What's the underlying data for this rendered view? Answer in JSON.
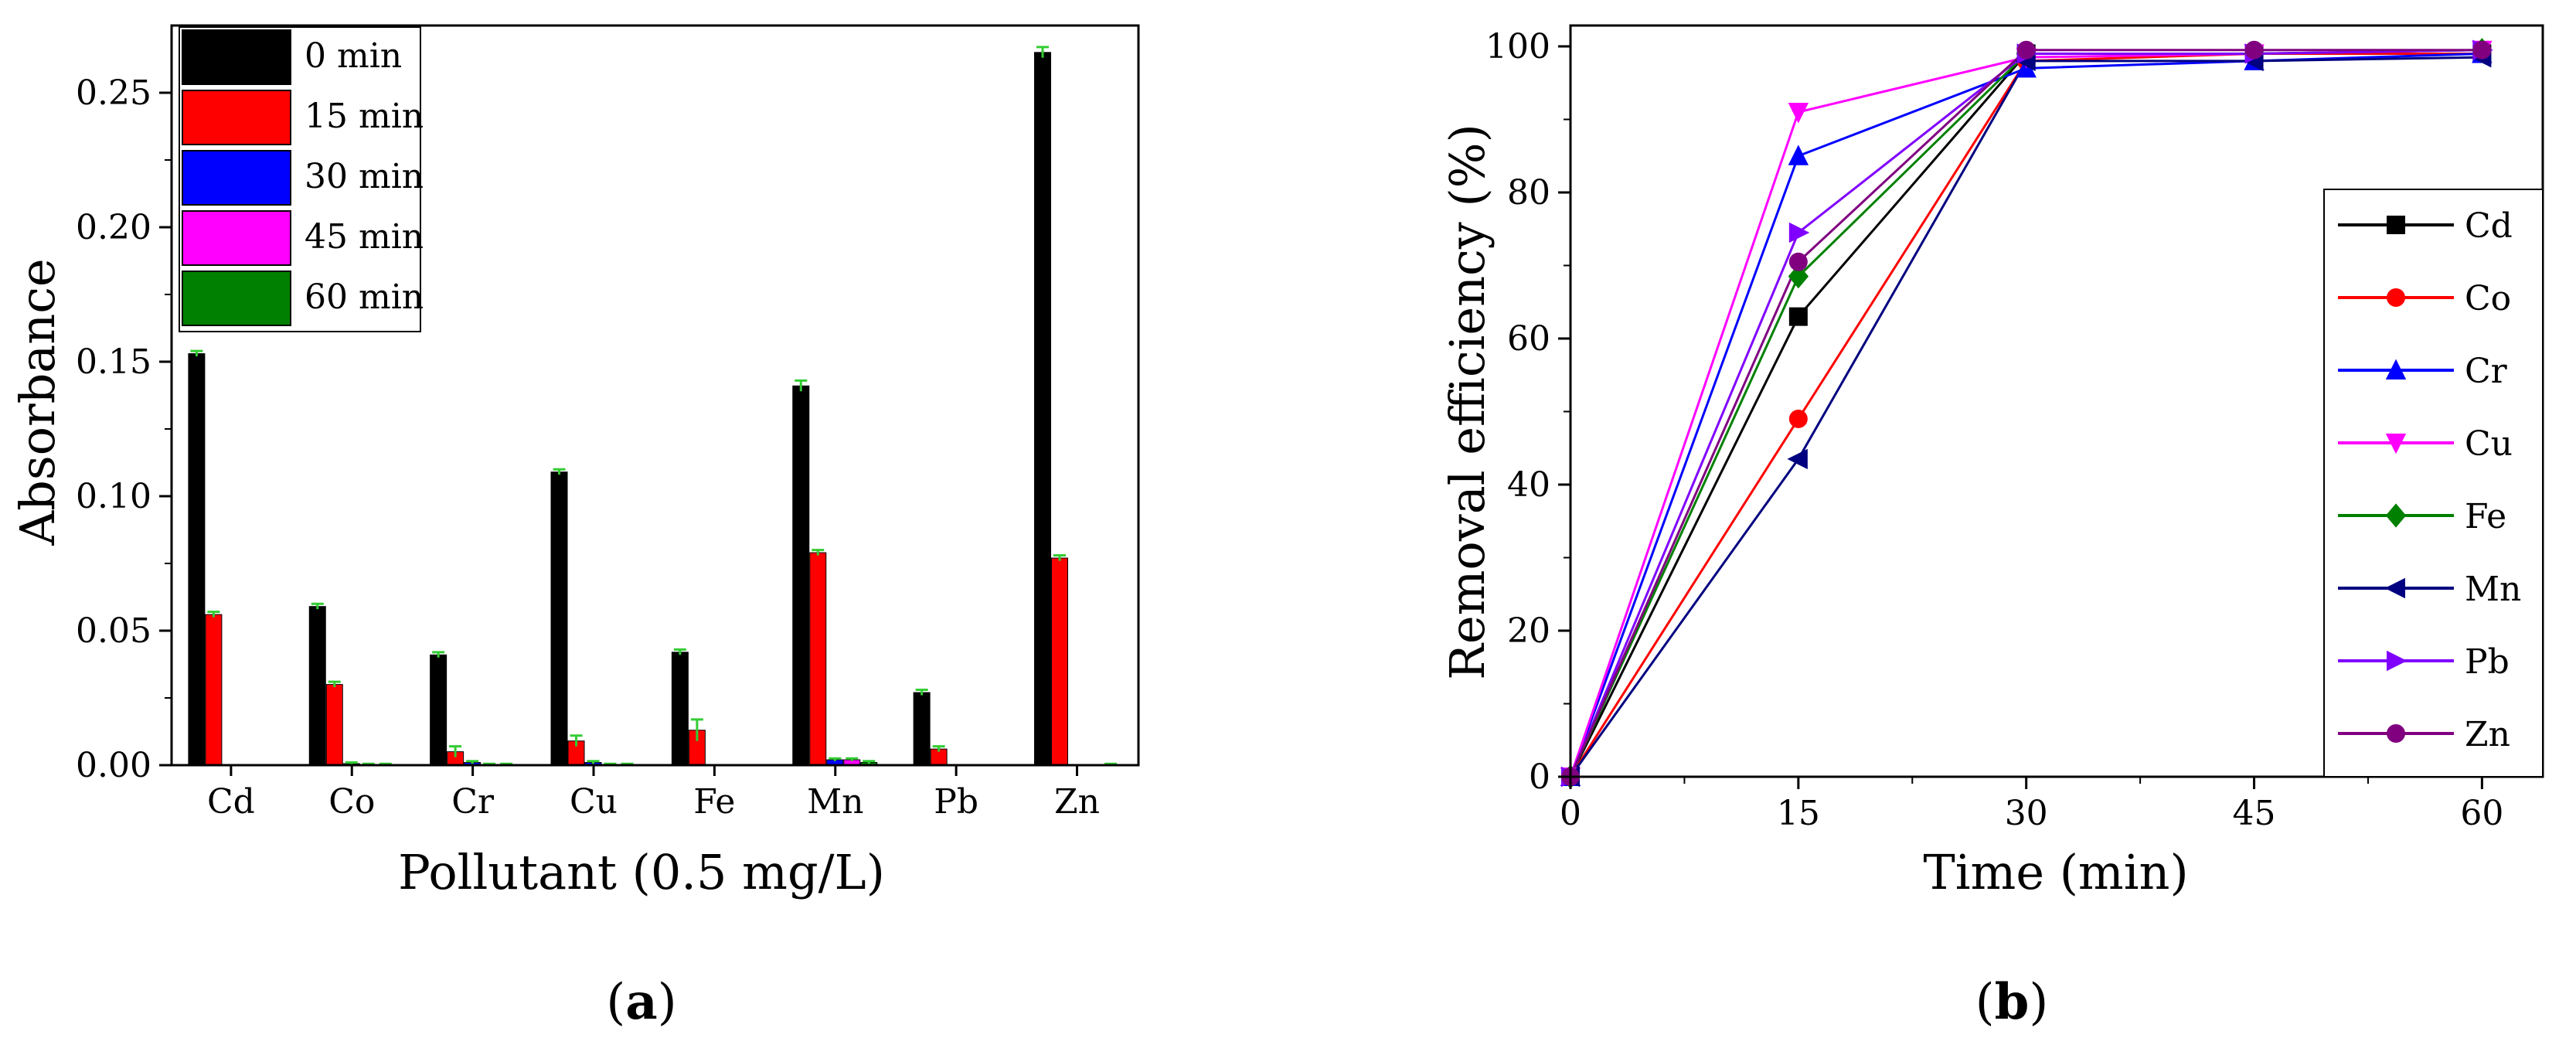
{
  "panel_a": {
    "label": "(a)",
    "label_letter": "a",
    "chart_data": {
      "type": "bar",
      "title": "",
      "xlabel": "Pollutant (0.5 mg/L)",
      "ylabel": "Absorbance",
      "ylim": [
        0,
        0.275
      ],
      "yticks": [
        "0.00",
        "0.05",
        "0.10",
        "0.15",
        "0.20",
        "0.25"
      ],
      "ytick_values": [
        0,
        0.05,
        0.1,
        0.15,
        0.2,
        0.25
      ],
      "categories": [
        "Cd",
        "Co",
        "Cr",
        "Cu",
        "Fe",
        "Mn",
        "Pb",
        "Zn"
      ],
      "legend_position": "top-left",
      "series": [
        {
          "name": "0 min",
          "color": "#000000",
          "values": [
            0.153,
            0.059,
            0.041,
            0.109,
            0.042,
            0.141,
            0.027,
            0.265
          ],
          "errors": [
            0.001,
            0.001,
            0.001,
            0.001,
            0.001,
            0.002,
            0.001,
            0.002
          ]
        },
        {
          "name": "15 min",
          "color": "#ff0000",
          "values": [
            0.056,
            0.03,
            0.005,
            0.009,
            0.013,
            0.079,
            0.006,
            0.077
          ],
          "errors": [
            0.001,
            0.001,
            0.002,
            0.002,
            0.004,
            0.001,
            0.001,
            0.001
          ]
        },
        {
          "name": "30 min",
          "color": "#0000ff",
          "values": [
            0.0,
            0.0005,
            0.001,
            0.001,
            0.0,
            0.002,
            0.0,
            0.0
          ],
          "errors": [
            0,
            0.0005,
            0.0005,
            0.0005,
            0,
            0.0005,
            0,
            0
          ]
        },
        {
          "name": "45 min",
          "color": "#ff00ff",
          "values": [
            0.0,
            0.0,
            0.0,
            0.0,
            0.0,
            0.002,
            0.0,
            0.0
          ],
          "errors": [
            0,
            0.0005,
            0.0005,
            0.0005,
            0,
            0.0005,
            0,
            0
          ]
        },
        {
          "name": "60 min",
          "color": "#008000",
          "values": [
            0.0,
            0.0,
            0.0,
            0.0,
            0.0,
            0.001,
            0.0,
            0.0
          ],
          "errors": [
            0,
            0.0005,
            0.0005,
            0.0005,
            0,
            0.0005,
            0,
            0.0005
          ]
        }
      ],
      "errorbar_color": "#33cc33"
    }
  },
  "panel_b": {
    "label": "(b)",
    "label_letter": "b",
    "chart_data": {
      "type": "line",
      "title": "",
      "xlabel": "Time (min)",
      "ylabel": "Removal efficiency (%)",
      "xlim": [
        0,
        64
      ],
      "ylim": [
        0,
        100
      ],
      "xticks": [
        "0",
        "15",
        "30",
        "45",
        "60"
      ],
      "xtick_values": [
        0,
        15,
        30,
        45,
        60
      ],
      "yticks": [
        "0",
        "20",
        "40",
        "60",
        "80",
        "100"
      ],
      "ytick_values": [
        0,
        20,
        40,
        60,
        80,
        100
      ],
      "x": [
        0,
        15,
        30,
        45,
        60
      ],
      "legend_position": "bottom-right",
      "series": [
        {
          "name": "Cd",
          "color": "#000000",
          "marker": "square",
          "values": [
            0,
            63,
            99,
            99,
            99
          ]
        },
        {
          "name": "Co",
          "color": "#ff0000",
          "marker": "circle",
          "values": [
            0,
            49,
            98,
            99,
            99
          ]
        },
        {
          "name": "Cr",
          "color": "#0000ff",
          "marker": "triangle-up",
          "values": [
            0,
            85,
            97,
            98,
            99
          ]
        },
        {
          "name": "Cu",
          "color": "#ff00ff",
          "marker": "triangle-down",
          "values": [
            0,
            91,
            98.5,
            99,
            99.5
          ]
        },
        {
          "name": "Fe",
          "color": "#008000",
          "marker": "diamond",
          "values": [
            0,
            68.5,
            99,
            99,
            99.5
          ]
        },
        {
          "name": "Mn",
          "color": "#000080",
          "marker": "triangle-left",
          "values": [
            0,
            43.5,
            98,
            98,
            98.5
          ]
        },
        {
          "name": "Pb",
          "color": "#8000ff",
          "marker": "triangle-right",
          "values": [
            0,
            74.5,
            99,
            99,
            99.5
          ]
        },
        {
          "name": "Zn",
          "color": "#800080",
          "marker": "circle",
          "values": [
            0,
            70.5,
            99.5,
            99.5,
            99.5
          ]
        }
      ]
    }
  }
}
